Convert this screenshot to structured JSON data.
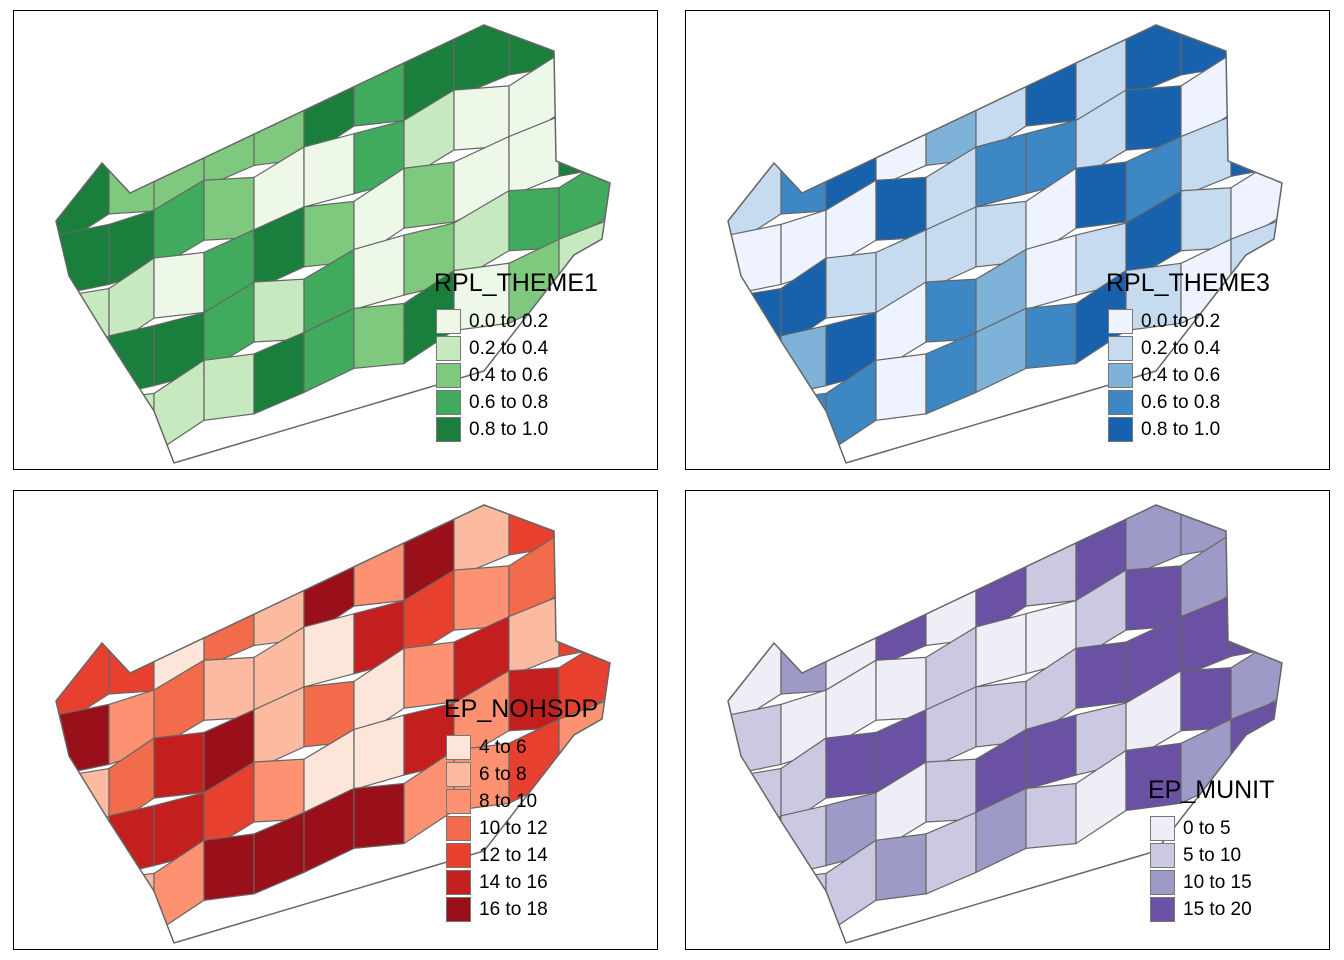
{
  "maps": [
    {
      "id": "theme1",
      "legend_title": "RPL_THEME1",
      "palette": [
        "#edf8e9",
        "#c7e9c0",
        "#7fc97f",
        "#41ab5d",
        "#1a7f3c"
      ],
      "legend": [
        {
          "label": "0.0 to 0.2",
          "color": "#edf8e9"
        },
        {
          "label": "0.2 to 0.4",
          "color": "#c7e9c0"
        },
        {
          "label": "0.4 to 0.6",
          "color": "#7fc97f"
        },
        {
          "label": "0.6 to 0.8",
          "color": "#41ab5d"
        },
        {
          "label": "0.8 to 1.0",
          "color": "#1a7f3c"
        }
      ]
    },
    {
      "id": "theme3",
      "legend_title": "RPL_THEME3",
      "palette": [
        "#eff3ff",
        "#c6dbef",
        "#7fb2d8",
        "#3d87c4",
        "#1761ad"
      ],
      "legend": [
        {
          "label": "0.0 to 0.2",
          "color": "#eff3ff"
        },
        {
          "label": "0.2 to 0.4",
          "color": "#c6dbef"
        },
        {
          "label": "0.4 to 0.6",
          "color": "#7fb2d8"
        },
        {
          "label": "0.6 to 0.8",
          "color": "#3d87c4"
        },
        {
          "label": "0.8 to 1.0",
          "color": "#1761ad"
        }
      ]
    },
    {
      "id": "nohsdp",
      "legend_title": "EP_NOHSDP",
      "palette": [
        "#fee5d9",
        "#fcbba1",
        "#fc9272",
        "#f26b4a",
        "#e8402e",
        "#c41f1f",
        "#99101a"
      ],
      "legend": [
        {
          "label": "4 to 6",
          "color": "#fee5d9"
        },
        {
          "label": "6 to 8",
          "color": "#fcbba1"
        },
        {
          "label": "8 to 10",
          "color": "#fc9272"
        },
        {
          "label": "10 to 12",
          "color": "#f26b4a"
        },
        {
          "label": "12 to 14",
          "color": "#e8402e"
        },
        {
          "label": "14 to 16",
          "color": "#c41f1f"
        },
        {
          "label": "16 to 18",
          "color": "#99101a"
        }
      ]
    },
    {
      "id": "munit",
      "legend_title": "EP_MUNIT",
      "palette": [
        "#efedf5",
        "#cbc9e2",
        "#9e9ac8",
        "#6a51a3"
      ],
      "legend": [
        {
          "label": "0 to 5",
          "color": "#efedf5"
        },
        {
          "label": "5 to 10",
          "color": "#cbc9e2"
        },
        {
          "label": "10 to 15",
          "color": "#9e9ac8"
        },
        {
          "label": "15 to 20",
          "color": "#6a51a3"
        }
      ]
    }
  ]
}
